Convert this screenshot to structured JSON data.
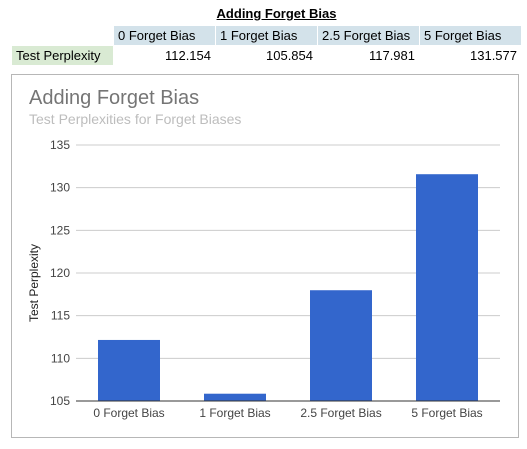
{
  "sheet": {
    "title": "Adding Forget Bias",
    "headers": [
      "0 Forget Bias",
      "1 Forget Bias",
      "2.5 Forget Bias",
      "5 Forget Bias"
    ],
    "row_label": "Test Perplexity",
    "values": [
      "112.154",
      "105.854",
      "117.981",
      "131.577"
    ]
  },
  "chart_data": {
    "type": "bar",
    "title": "Adding Forget Bias",
    "subtitle": "Test Perplexities for Forget Biases",
    "xlabel": "",
    "ylabel": "Test Perplexity",
    "categories": [
      "0 Forget Bias",
      "1 Forget Bias",
      "2.5 Forget Bias",
      "5 Forget Bias"
    ],
    "values": [
      112.154,
      105.854,
      117.981,
      131.577
    ],
    "ylim": [
      105,
      135
    ],
    "yticks": [
      105,
      110,
      115,
      120,
      125,
      130,
      135
    ],
    "grid": true,
    "legend": "none",
    "bar_color": "#3366cc"
  }
}
